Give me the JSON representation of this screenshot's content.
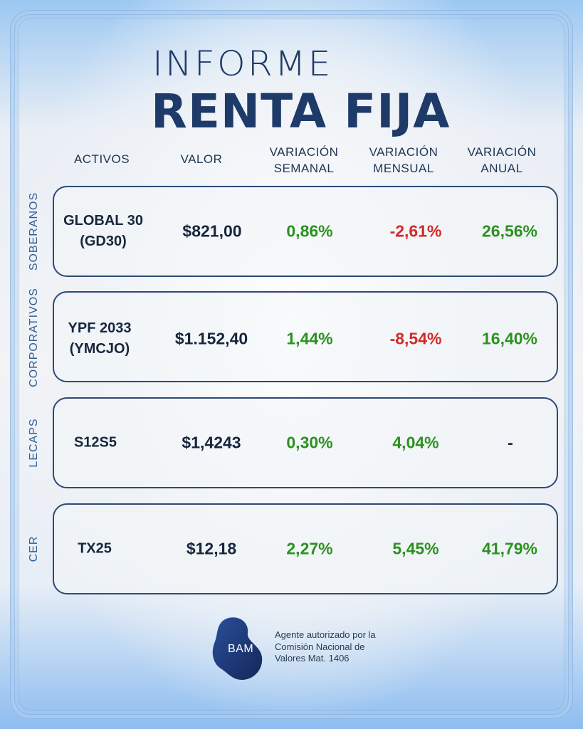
{
  "header": {
    "title_top": "INFORME",
    "title_main": "RENTA FIJA"
  },
  "columns": {
    "asset": [
      "ACTIVOS"
    ],
    "value": [
      "VALOR"
    ],
    "weekly": [
      "VARIACIÓN",
      "SEMANAL"
    ],
    "monthly": [
      "VARIACIÓN",
      "MENSUAL"
    ],
    "annual": [
      "VARIACIÓN",
      "ANUAL"
    ]
  },
  "rows": [
    {
      "category": "SOBERANOS",
      "asset": [
        "GLOBAL 30",
        "(GD30)"
      ],
      "value": "$821,00",
      "weekly": "0,86%",
      "monthly": "-2,61%",
      "annual": "26,56%"
    },
    {
      "category": "CORPORATIVOS",
      "asset": [
        "YPF 2033",
        "(YMCJO)"
      ],
      "value": "$1.152,40",
      "weekly": "1,44%",
      "monthly": "-8,54%",
      "annual": "16,40%"
    },
    {
      "category": "LECAPS",
      "asset": [
        "S12S5"
      ],
      "value": "$1,4243",
      "weekly": "0,30%",
      "monthly": "4,04%",
      "annual": "-"
    },
    {
      "category": "CER",
      "asset": [
        "TX25"
      ],
      "value": "$12,18",
      "weekly": "2,27%",
      "monthly": "5,45%",
      "annual": "41,79%"
    }
  ],
  "footer": {
    "logo_text": "BAM",
    "agent_lines": [
      "Agente autorizado por la",
      "Comisión Nacional de",
      "Valores Mat. 1406"
    ]
  },
  "colors": {
    "positive": "#2c9121",
    "negative": "#d12a27",
    "primary": "#1e3a68"
  }
}
